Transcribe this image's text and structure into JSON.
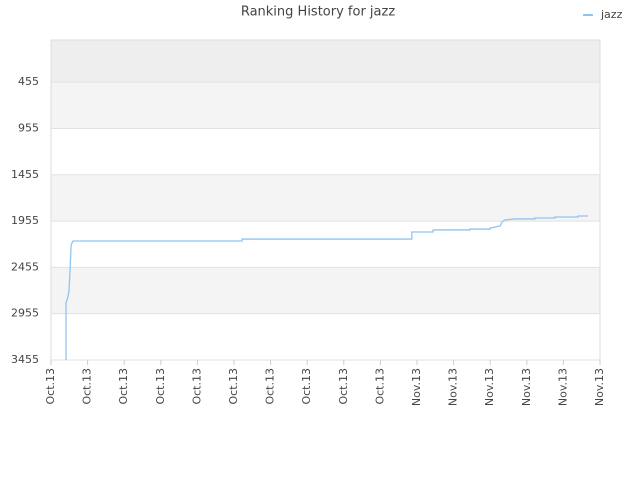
{
  "chart_data": {
    "type": "line",
    "title": "Ranking History for jazz",
    "xticks": [
      {
        "value": 0,
        "label": "Oct.13"
      },
      {
        "value": 1,
        "label": "Oct.13"
      },
      {
        "value": 2,
        "label": "Oct.13"
      },
      {
        "value": 3,
        "label": "Oct.13"
      },
      {
        "value": 4,
        "label": "Oct.13"
      },
      {
        "value": 5,
        "label": "Oct.13"
      },
      {
        "value": 6,
        "label": "Oct.13"
      },
      {
        "value": 7,
        "label": "Oct.13"
      },
      {
        "value": 8,
        "label": "Oct.13"
      },
      {
        "value": 9,
        "label": "Oct.13"
      },
      {
        "value": 10,
        "label": "Nov.13"
      },
      {
        "value": 11,
        "label": "Nov.13"
      },
      {
        "value": 12,
        "label": "Nov.13"
      },
      {
        "value": 13,
        "label": "Nov.13"
      },
      {
        "value": 14,
        "label": "Nov.13"
      },
      {
        "value": 15,
        "label": "Nov.13"
      }
    ],
    "xlim": [
      0,
      15
    ],
    "ylim": [
      3455,
      0
    ],
    "yticks": [
      455,
      955,
      1455,
      1955,
      2455,
      2955,
      3455
    ],
    "legend": "top-right",
    "series": [
      {
        "name": "jazz",
        "color": "#90c4f0",
        "x": [
          0.41,
          0.41,
          0.44,
          0.49,
          0.52,
          0.55,
          0.6,
          5.22,
          5.22,
          9.86,
          9.86,
          10.44,
          10.44,
          11.45,
          11.45,
          12.0,
          12.0,
          12.27,
          12.32,
          12.4,
          12.68,
          13.22,
          13.22,
          13.77,
          13.77,
          14.4,
          14.4,
          14.67
        ],
        "values": [
          3455,
          2830,
          2807,
          2721,
          2483,
          2213,
          2170,
          2170,
          2149,
          2149,
          2073,
          2073,
          2051,
          2051,
          2041,
          2041,
          2030,
          2008,
          1965,
          1943,
          1932,
          1932,
          1922,
          1922,
          1911,
          1911,
          1900,
          1900
        ]
      }
    ]
  }
}
